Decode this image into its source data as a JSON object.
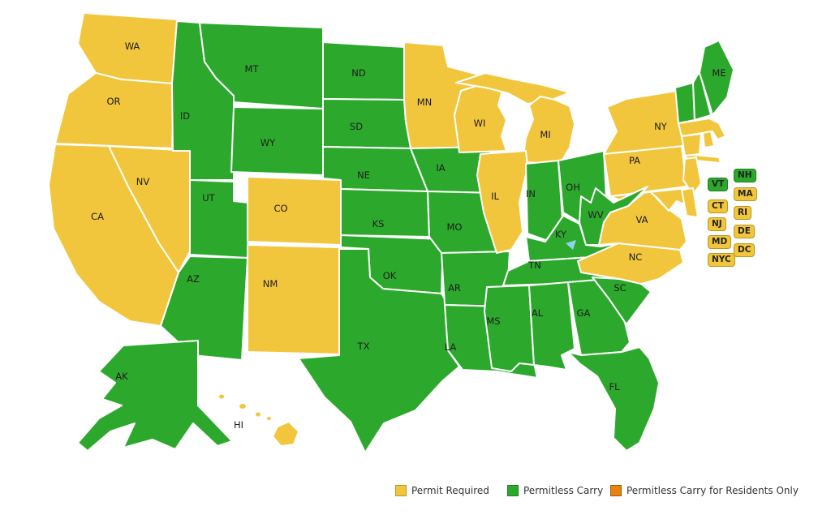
{
  "categories": {
    "permit_required": {
      "label": "Permit Required",
      "fill": "#F2C63C",
      "box_border": "#B8981F"
    },
    "permitless": {
      "label": "Permitless Carry",
      "fill": "#2CA92C",
      "box_border": "#1E7E1E"
    },
    "permitless_residents": {
      "label": "Permitless Carry for Residents Only",
      "fill": "#E8820C",
      "box_border": "#9C5A14"
    }
  },
  "water_color": "#8FD3EE",
  "states": [
    {
      "abbr": "WA",
      "category": "permit_required"
    },
    {
      "abbr": "OR",
      "category": "permit_required"
    },
    {
      "abbr": "CA",
      "category": "permit_required"
    },
    {
      "abbr": "NV",
      "category": "permit_required"
    },
    {
      "abbr": "ID",
      "category": "permitless"
    },
    {
      "abbr": "MT",
      "category": "permitless"
    },
    {
      "abbr": "WY",
      "category": "permitless"
    },
    {
      "abbr": "UT",
      "category": "permitless"
    },
    {
      "abbr": "AZ",
      "category": "permitless"
    },
    {
      "abbr": "CO",
      "category": "permit_required"
    },
    {
      "abbr": "NM",
      "category": "permit_required"
    },
    {
      "abbr": "ND",
      "category": "permitless"
    },
    {
      "abbr": "SD",
      "category": "permitless"
    },
    {
      "abbr": "NE",
      "category": "permitless"
    },
    {
      "abbr": "KS",
      "category": "permitless"
    },
    {
      "abbr": "OK",
      "category": "permitless"
    },
    {
      "abbr": "TX",
      "category": "permitless"
    },
    {
      "abbr": "MN",
      "category": "permit_required"
    },
    {
      "abbr": "IA",
      "category": "permitless"
    },
    {
      "abbr": "MO",
      "category": "permitless"
    },
    {
      "abbr": "AR",
      "category": "permitless"
    },
    {
      "abbr": "LA",
      "category": "permitless"
    },
    {
      "abbr": "WI",
      "category": "permit_required"
    },
    {
      "abbr": "MI",
      "category": "permit_required"
    },
    {
      "abbr": "IL",
      "category": "permit_required"
    },
    {
      "abbr": "IN",
      "category": "permitless"
    },
    {
      "abbr": "OH",
      "category": "permitless"
    },
    {
      "abbr": "KY",
      "category": "permitless"
    },
    {
      "abbr": "TN",
      "category": "permitless"
    },
    {
      "abbr": "MS",
      "category": "permitless"
    },
    {
      "abbr": "AL",
      "category": "permitless"
    },
    {
      "abbr": "GA",
      "category": "permitless"
    },
    {
      "abbr": "SC",
      "category": "permitless"
    },
    {
      "abbr": "NC",
      "category": "permit_required"
    },
    {
      "abbr": "VA",
      "category": "permit_required"
    },
    {
      "abbr": "MD",
      "category": "permit_required"
    },
    {
      "abbr": "PA",
      "category": "permit_required"
    },
    {
      "abbr": "NY",
      "category": "permit_required"
    },
    {
      "abbr": "NJ",
      "category": "permit_required"
    },
    {
      "abbr": "DE",
      "category": "permit_required"
    },
    {
      "abbr": "WV",
      "category": "permitless"
    },
    {
      "abbr": "FL",
      "category": "permitless"
    },
    {
      "abbr": "VT",
      "category": "permitless"
    },
    {
      "abbr": "NH",
      "category": "permitless"
    },
    {
      "abbr": "ME",
      "category": "permitless"
    },
    {
      "abbr": "MA",
      "category": "permit_required"
    },
    {
      "abbr": "CT",
      "category": "permit_required"
    },
    {
      "abbr": "RI",
      "category": "permit_required"
    },
    {
      "abbr": "AK",
      "category": "permitless"
    },
    {
      "abbr": "HI",
      "category": "permit_required"
    }
  ],
  "small_state_boxes": {
    "left_column": [
      {
        "abbr": "VT",
        "category": "permitless"
      },
      {
        "abbr": "CT",
        "category": "permit_required"
      },
      {
        "abbr": "NJ",
        "category": "permit_required"
      },
      {
        "abbr": "MD",
        "category": "permit_required"
      },
      {
        "abbr": "NYC",
        "category": "permit_required"
      }
    ],
    "right_column": [
      {
        "abbr": "NH",
        "category": "permitless"
      },
      {
        "abbr": "MA",
        "category": "permit_required"
      },
      {
        "abbr": "RI",
        "category": "permit_required"
      },
      {
        "abbr": "DE",
        "category": "permit_required"
      },
      {
        "abbr": "DC",
        "category": "permit_required"
      }
    ]
  },
  "legend": {
    "items": [
      {
        "category": "permit_required"
      },
      {
        "category": "permitless"
      },
      {
        "category": "permitless_residents"
      }
    ]
  }
}
